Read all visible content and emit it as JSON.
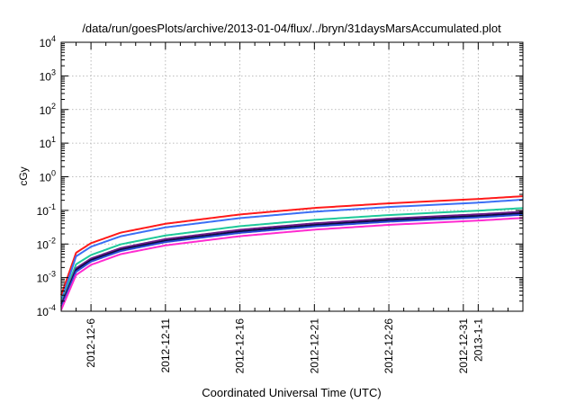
{
  "chart_data": {
    "type": "line",
    "title": "/data/run/goesPlots/archive/2013-01-04/flux/../bryn/31daysMarsAccumulated.plot",
    "xlabel": "Coordinated Universal Time (UTC)",
    "ylabel": "cGy",
    "yscale": "log",
    "ylim": [
      0.0001,
      10000
    ],
    "xlim": [
      "2012-12-04",
      "2013-01-04"
    ],
    "grid": true,
    "legend": "none",
    "y_ticks": [
      {
        "mant": "10",
        "exp": "-4"
      },
      {
        "mant": "10",
        "exp": "-3"
      },
      {
        "mant": "10",
        "exp": "-2"
      },
      {
        "mant": "10",
        "exp": "-1"
      },
      {
        "mant": "10",
        "exp": "0"
      },
      {
        "mant": "10",
        "exp": "1"
      },
      {
        "mant": "10",
        "exp": "2"
      },
      {
        "mant": "10",
        "exp": "3"
      },
      {
        "mant": "10",
        "exp": "4"
      }
    ],
    "x_ticks": [
      {
        "date": "2012-12-06",
        "label": "2012-12-6"
      },
      {
        "date": "2012-12-11",
        "label": "2012-12-11"
      },
      {
        "date": "2012-12-16",
        "label": "2012-12-16"
      },
      {
        "date": "2012-12-21",
        "label": "2012-12-21"
      },
      {
        "date": "2012-12-26",
        "label": "2012-12-26"
      },
      {
        "date": "2012-12-31",
        "label": "2012-12-31"
      },
      {
        "date": "2013-01-01",
        "label": "2013-1-1"
      }
    ],
    "x_minor_ticks": [
      "2012-12-05",
      "2012-12-07",
      "2012-12-08",
      "2012-12-09",
      "2012-12-10",
      "2012-12-12",
      "2012-12-13",
      "2012-12-14",
      "2012-12-15",
      "2012-12-17",
      "2012-12-18",
      "2012-12-19",
      "2012-12-20",
      "2012-12-22",
      "2012-12-23",
      "2012-12-24",
      "2012-12-25",
      "2012-12-27",
      "2012-12-28",
      "2012-12-29",
      "2012-12-30",
      "2013-01-02",
      "2013-01-03"
    ],
    "x": [
      "2012-12-04",
      "2012-12-05",
      "2012-12-06",
      "2012-12-08",
      "2012-12-11",
      "2012-12-16",
      "2012-12-21",
      "2012-12-26",
      "2013-01-01",
      "2013-01-04"
    ],
    "series": [
      {
        "color": "#ff1a1a",
        "values": [
          0.0003,
          0.0055,
          0.0106,
          0.0218,
          0.04,
          0.0756,
          0.118,
          0.162,
          0.218,
          0.264
        ]
      },
      {
        "color": "#3b6ff5",
        "values": [
          0.0002,
          0.0043,
          0.0083,
          0.017,
          0.0312,
          0.059,
          0.0912,
          0.126,
          0.17,
          0.209
        ]
      },
      {
        "color": "#1fc99a",
        "values": [
          0.00018,
          0.0025,
          0.0047,
          0.0098,
          0.0179,
          0.0339,
          0.0524,
          0.0726,
          0.098,
          0.117
        ]
      },
      {
        "color": "#6c1a8a",
        "values": [
          0.00016,
          0.0019,
          0.0037,
          0.0076,
          0.014,
          0.0265,
          0.0412,
          0.057,
          0.0764,
          0.0912
        ]
      },
      {
        "color": "#0a0a3d",
        "values": [
          0.00014,
          0.0017,
          0.0033,
          0.0068,
          0.0125,
          0.0236,
          0.0367,
          0.0509,
          0.0682,
          0.0818
        ]
      },
      {
        "color": "#2b4bd6",
        "values": [
          0.00013,
          0.0015,
          0.003,
          0.0062,
          0.0114,
          0.0214,
          0.0334,
          0.0462,
          0.062,
          0.0745
        ]
      },
      {
        "color": "#ff2bd0",
        "values": [
          0.00011,
          0.0012,
          0.0024,
          0.005,
          0.0091,
          0.0171,
          0.0267,
          0.0371,
          0.0497,
          0.0597
        ]
      }
    ]
  }
}
